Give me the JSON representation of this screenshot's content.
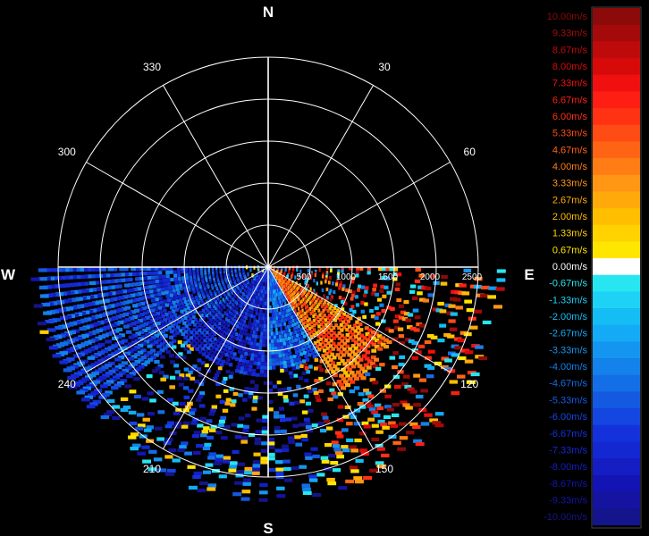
{
  "chart_data": {
    "type": "polar-heatmap",
    "title": "",
    "compass": {
      "north": "N",
      "east": "E",
      "south": "S",
      "west": "W"
    },
    "azimuth_labels": [
      {
        "azimuth": 30,
        "label": "30"
      },
      {
        "azimuth": 60,
        "label": "60"
      },
      {
        "azimuth": 120,
        "label": "120"
      },
      {
        "azimuth": 150,
        "label": "150"
      },
      {
        "azimuth": 210,
        "label": "210"
      },
      {
        "azimuth": 240,
        "label": "240"
      },
      {
        "azimuth": 300,
        "label": "300"
      },
      {
        "azimuth": 330,
        "label": "330"
      }
    ],
    "spoke_step_deg": 30,
    "range_rings": [
      500,
      1000,
      1500,
      2000,
      2500
    ],
    "range_ring_labels": [
      "500",
      "1000",
      "1500",
      "2000",
      "2500"
    ],
    "range_max": 2500,
    "grid": true,
    "scan_sector_deg": [
      90,
      270
    ],
    "legend": {
      "position": "right",
      "entries": [
        {
          "label": "10.00m/s",
          "value": 10.0,
          "color": "#8c0a0a"
        },
        {
          "label": "9.33m/s",
          "value": 9.33,
          "color": "#a50a0a"
        },
        {
          "label": "8.67m/s",
          "value": 8.67,
          "color": "#be0a0a"
        },
        {
          "label": "8.00m/s",
          "value": 8.0,
          "color": "#d70a0a"
        },
        {
          "label": "7.33m/s",
          "value": 7.33,
          "color": "#f01010"
        },
        {
          "label": "6.67m/s",
          "value": 6.67,
          "color": "#ff1e14"
        },
        {
          "label": "6.00m/s",
          "value": 6.0,
          "color": "#ff3214"
        },
        {
          "label": "5.33m/s",
          "value": 5.33,
          "color": "#ff4b14"
        },
        {
          "label": "4.67m/s",
          "value": 4.67,
          "color": "#ff6414"
        },
        {
          "label": "4.00m/s",
          "value": 4.0,
          "color": "#ff7d14"
        },
        {
          "label": "3.33m/s",
          "value": 3.33,
          "color": "#ff9614"
        },
        {
          "label": "2.67m/s",
          "value": 2.67,
          "color": "#ffaa0a"
        },
        {
          "label": "2.00m/s",
          "value": 2.0,
          "color": "#ffbe00"
        },
        {
          "label": "1.33m/s",
          "value": 1.33,
          "color": "#ffd200"
        },
        {
          "label": "0.67m/s",
          "value": 0.67,
          "color": "#ffe600"
        },
        {
          "label": "0.00m/s",
          "value": 0.0,
          "color": "#ffffff"
        },
        {
          "label": "-0.67m/s",
          "value": -0.67,
          "color": "#28e6f0"
        },
        {
          "label": "-1.33m/s",
          "value": -1.33,
          "color": "#1ed2f5"
        },
        {
          "label": "-2.00m/s",
          "value": -2.0,
          "color": "#14bef5"
        },
        {
          "label": "-2.67m/s",
          "value": -2.67,
          "color": "#14aaf5"
        },
        {
          "label": "-3.33m/s",
          "value": -3.33,
          "color": "#1496f0"
        },
        {
          "label": "-4.00m/s",
          "value": -4.0,
          "color": "#1482eb"
        },
        {
          "label": "-4.67m/s",
          "value": -4.67,
          "color": "#146ee6"
        },
        {
          "label": "-5.33m/s",
          "value": -5.33,
          "color": "#145ae1"
        },
        {
          "label": "-6.00m/s",
          "value": -6.0,
          "color": "#1446e1"
        },
        {
          "label": "-6.67m/s",
          "value": -6.67,
          "color": "#1432dc"
        },
        {
          "label": "-7.33m/s",
          "value": -7.33,
          "color": "#1428d2"
        },
        {
          "label": "-8.00m/s",
          "value": -8.0,
          "color": "#141ec3"
        },
        {
          "label": "-8.67m/s",
          "value": -8.67,
          "color": "#1414b4"
        },
        {
          "label": "-9.33m/s",
          "value": -9.33,
          "color": "#1414a0"
        },
        {
          "label": "-10.00m/s",
          "value": -10.0,
          "color": "#14148c"
        }
      ]
    },
    "velocity_field": {
      "value_range": [
        -10,
        10
      ],
      "regions": [
        {
          "azimuth_range": [
            120,
            150
          ],
          "range": [
            0,
            1700
          ],
          "velocity": 4.2
        },
        {
          "azimuth_range": [
            150,
            180
          ],
          "range": [
            0,
            1200
          ],
          "velocity": -5.0
        },
        {
          "azimuth_range": [
            180,
            230
          ],
          "range": [
            0,
            1300
          ],
          "velocity": -7.5
        },
        {
          "azimuth_range": [
            230,
            270
          ],
          "range": [
            300,
            2700
          ],
          "velocity": -6.0
        }
      ]
    }
  }
}
